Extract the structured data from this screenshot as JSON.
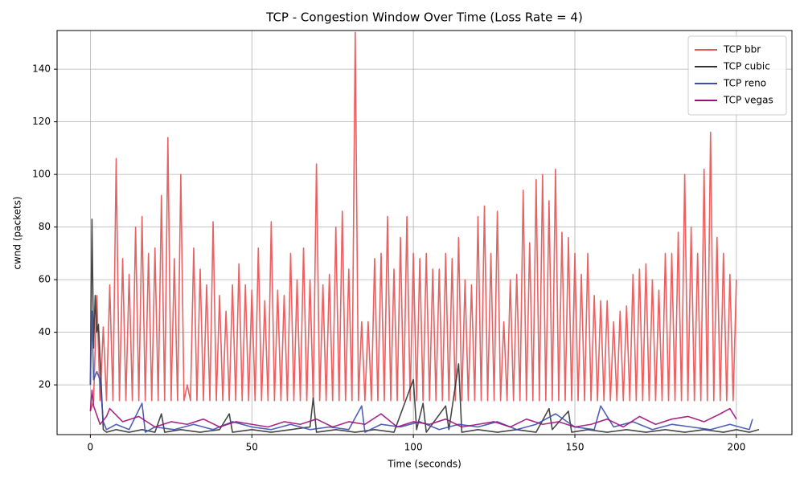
{
  "chart_data": {
    "type": "line",
    "title": "TCP - Congestion Window Over Time (Loss Rate = 4)",
    "x_label": "Time (seconds)",
    "y_label": "cwnd (packets)",
    "xlim": [
      -10.3,
      217.2
    ],
    "ylim": [
      1.1,
      154.7
    ],
    "xticks": [
      0,
      50,
      100,
      150,
      200
    ],
    "yticks": [
      20,
      40,
      60,
      80,
      100,
      120,
      140
    ],
    "grid": true,
    "legend": "upper right",
    "series": [
      {
        "name": "TCP bbr",
        "color": "#e8585a",
        "x": [
          0,
          1,
          2,
          3,
          4,
          5,
          6,
          7,
          8,
          9,
          10,
          11,
          12,
          13,
          14,
          15,
          16,
          17,
          18,
          19,
          20,
          21,
          22,
          23,
          24,
          25,
          26,
          27,
          28,
          29,
          30,
          31,
          32,
          33,
          34,
          35,
          36,
          37,
          38,
          39,
          40,
          41,
          42,
          43,
          44,
          45,
          46,
          47,
          48,
          49,
          50,
          51,
          52,
          53,
          54,
          55,
          56,
          57,
          58,
          59,
          60,
          61,
          62,
          63,
          64,
          65,
          66,
          67,
          68,
          69,
          70,
          71,
          72,
          73,
          74,
          75,
          76,
          77,
          78,
          79,
          80,
          81,
          82,
          83,
          84,
          85,
          86,
          87,
          88,
          89,
          90,
          91,
          92,
          93,
          94,
          95,
          96,
          97,
          98,
          99,
          100,
          101,
          102,
          103,
          104,
          105,
          106,
          107,
          108,
          109,
          110,
          111,
          112,
          113,
          114,
          115,
          116,
          117,
          118,
          119,
          120,
          121,
          122,
          123,
          124,
          125,
          126,
          127,
          128,
          129,
          130,
          131,
          132,
          133,
          134,
          135,
          136,
          137,
          138,
          139,
          140,
          141,
          142,
          143,
          144,
          145,
          146,
          147,
          148,
          149,
          150,
          151,
          152,
          153,
          154,
          155,
          156,
          157,
          158,
          159,
          160,
          161,
          162,
          163,
          164,
          165,
          166,
          167,
          168,
          169,
          170,
          171,
          172,
          173,
          174,
          175,
          176,
          177,
          178,
          179,
          180,
          181,
          182,
          183,
          184,
          185,
          186,
          187,
          188,
          189,
          190,
          191,
          192,
          193,
          194,
          195,
          196,
          197,
          198,
          199,
          200
        ],
        "values": [
          10,
          14,
          54,
          14,
          42,
          14,
          58,
          14,
          106,
          14,
          68,
          14,
          62,
          14,
          80,
          14,
          84,
          14,
          70,
          14,
          72,
          14,
          92,
          14,
          114,
          14,
          68,
          14,
          100,
          14,
          20,
          14,
          72,
          14,
          64,
          14,
          58,
          14,
          82,
          14,
          54,
          14,
          48,
          14,
          58,
          14,
          66,
          14,
          58,
          14,
          56,
          14,
          72,
          14,
          52,
          14,
          82,
          14,
          56,
          14,
          54,
          14,
          70,
          14,
          60,
          14,
          72,
          14,
          60,
          14,
          104,
          14,
          58,
          14,
          62,
          14,
          80,
          14,
          86,
          14,
          64,
          14,
          154,
          14,
          44,
          14,
          44,
          14,
          68,
          14,
          70,
          14,
          84,
          14,
          64,
          14,
          76,
          14,
          84,
          14,
          70,
          14,
          68,
          14,
          70,
          14,
          64,
          14,
          64,
          14,
          70,
          14,
          68,
          14,
          76,
          14,
          60,
          14,
          58,
          14,
          84,
          14,
          88,
          14,
          70,
          14,
          86,
          14,
          44,
          14,
          60,
          14,
          62,
          14,
          94,
          14,
          74,
          14,
          98,
          14,
          100,
          14,
          90,
          14,
          102,
          14,
          78,
          14,
          76,
          14,
          70,
          14,
          62,
          14,
          70,
          14,
          54,
          14,
          52,
          14,
          52,
          14,
          44,
          14,
          48,
          14,
          50,
          14,
          62,
          14,
          64,
          14,
          66,
          14,
          60,
          14,
          56,
          14,
          70,
          14,
          70,
          14,
          78,
          14,
          100,
          14,
          80,
          14,
          70,
          14,
          102,
          14,
          116,
          14,
          76,
          14,
          70,
          14,
          62,
          14,
          60
        ]
      },
      {
        "name": "TCP cubic",
        "color": "#333333",
        "x": [
          0,
          0.5,
          1,
          1.5,
          2,
          2.5,
          3,
          4,
          5,
          8,
          12,
          16,
          20,
          22,
          23,
          28,
          34,
          40,
          43,
          44,
          50,
          56,
          62,
          68,
          69,
          70,
          76,
          82,
          88,
          94,
          100,
          101,
          103,
          104,
          110,
          111,
          114,
          115,
          120,
          126,
          132,
          138,
          142,
          143,
          148,
          149,
          154,
          160,
          166,
          172,
          178,
          184,
          190,
          196,
          200,
          204,
          207
        ],
        "values": [
          20,
          83,
          34,
          54,
          40,
          43,
          30,
          3,
          2,
          3,
          2,
          3,
          2,
          9,
          2,
          3,
          2,
          3,
          9,
          2,
          3,
          2,
          3,
          4,
          15,
          2,
          3,
          2,
          3,
          2,
          22,
          3,
          13,
          2,
          12,
          3,
          28,
          2,
          3,
          2,
          3,
          2,
          11,
          3,
          10,
          2,
          3,
          2,
          3,
          2,
          3,
          2,
          3,
          2,
          3,
          2,
          3
        ]
      },
      {
        "name": "TCP reno",
        "color": "#3b4fb0",
        "x": [
          0,
          0.5,
          1,
          2,
          3,
          4,
          5,
          8,
          12,
          16,
          17,
          20,
          26,
          32,
          38,
          44,
          50,
          56,
          62,
          68,
          74,
          80,
          84,
          85,
          90,
          96,
          102,
          108,
          114,
          120,
          126,
          132,
          138,
          144,
          150,
          156,
          158,
          162,
          168,
          174,
          180,
          186,
          192,
          198,
          204,
          205
        ],
        "values": [
          20,
          48,
          22,
          25,
          22,
          6,
          3,
          5,
          3,
          13,
          2,
          4,
          3,
          5,
          3,
          6,
          4,
          3,
          5,
          3,
          4,
          3,
          12,
          2,
          5,
          4,
          6,
          3,
          5,
          4,
          6,
          3,
          5,
          9,
          4,
          3,
          12,
          4,
          6,
          3,
          5,
          4,
          3,
          5,
          3,
          7
        ]
      },
      {
        "name": "TCP vegas",
        "color": "#a0107a",
        "x": [
          0,
          0.5,
          1,
          3,
          5,
          6,
          10,
          15,
          20,
          25,
          30,
          35,
          40,
          45,
          50,
          55,
          60,
          65,
          70,
          75,
          80,
          85,
          90,
          95,
          100,
          105,
          110,
          115,
          120,
          125,
          130,
          135,
          140,
          145,
          150,
          155,
          160,
          165,
          170,
          175,
          180,
          185,
          190,
          195,
          198,
          200
        ],
        "values": [
          10,
          18,
          12,
          5,
          8,
          11,
          6,
          8,
          4,
          6,
          5,
          7,
          4,
          6,
          5,
          4,
          6,
          5,
          7,
          4,
          6,
          5,
          9,
          4,
          6,
          5,
          7,
          4,
          5,
          6,
          4,
          7,
          5,
          6,
          4,
          5,
          7,
          4,
          8,
          5,
          7,
          8,
          6,
          9,
          11,
          7
        ]
      }
    ]
  }
}
